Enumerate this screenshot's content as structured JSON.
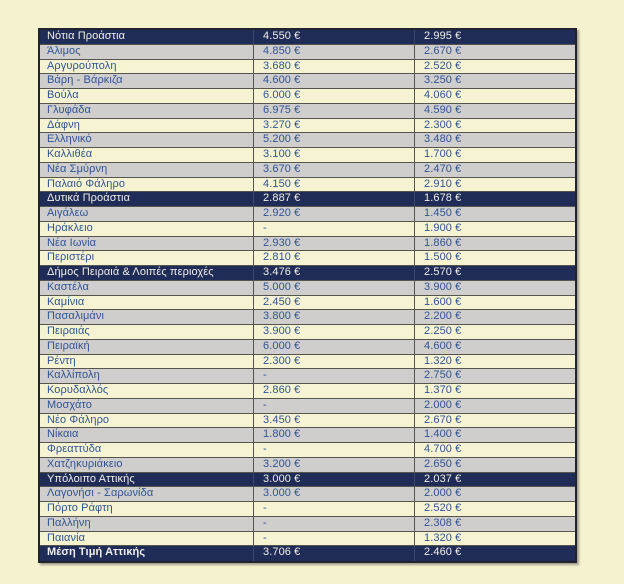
{
  "document": {
    "background_color": "#f5f2cf"
  },
  "table": {
    "description_colors": {
      "section_header_bg": "#202c58",
      "total_row_bg": "#202c58",
      "stripe_gray": "#d0cdcd",
      "stripe_cream": "#f6f3d2",
      "text_blue": "#2f5496",
      "text_on_navy": "#f0efe7",
      "inner_border": "#55544d",
      "outer_border": "#23232e"
    },
    "rows": [
      {
        "type": "section",
        "name": "Νότια Προάστια",
        "col1": "4.550 €",
        "col2": "2.995 €"
      },
      {
        "type": "data",
        "name": "Άλιμος",
        "col1": "4.850 €",
        "col2": "2.670 €"
      },
      {
        "type": "data",
        "name": "Αργυρούπολη",
        "col1": "3.680 €",
        "col2": "2.520 €"
      },
      {
        "type": "data",
        "name": "Βάρη - Βάρκιζα",
        "col1": "4.600 €",
        "col2": "3.250 €"
      },
      {
        "type": "data",
        "name": "Βούλα",
        "col1": "6.000 €",
        "col2": "4.060 €"
      },
      {
        "type": "data",
        "name": "Γλυφάδα",
        "col1": "6.975 €",
        "col2": "4.590 €"
      },
      {
        "type": "data",
        "name": "Δάφνη",
        "col1": "3.270 €",
        "col2": "2.300 €"
      },
      {
        "type": "data",
        "name": "Ελληνικό",
        "col1": "5.200 €",
        "col2": "3.480 €"
      },
      {
        "type": "data",
        "name": "Καλλιθέα",
        "col1": "3.100 €",
        "col2": "1.700 €"
      },
      {
        "type": "data",
        "name": "Νέα Σμύρνη",
        "col1": "3.670 €",
        "col2": "2.470 €"
      },
      {
        "type": "data",
        "name": "Παλαιό Φάληρο",
        "col1": "4.150 €",
        "col2": "2.910 €"
      },
      {
        "type": "section",
        "name": "Δυτικά Προάστια",
        "col1": "2.887 €",
        "col2": "1.678 €"
      },
      {
        "type": "data",
        "name": "Αιγάλεω",
        "col1": "2.920 €",
        "col2": "1.450 €"
      },
      {
        "type": "data",
        "name": "Ηράκλειο",
        "col1": "-",
        "col2": "1.900 €"
      },
      {
        "type": "data",
        "name": "Νέα Ιωνία",
        "col1": "2.930 €",
        "col2": "1.860 €"
      },
      {
        "type": "data",
        "name": "Περιστέρι",
        "col1": "2.810 €",
        "col2": "1.500 €"
      },
      {
        "type": "section",
        "name": "Δήμος Πειραιά & Λοιπές περιοχές",
        "col1": "3.476 €",
        "col2": "2.570 €"
      },
      {
        "type": "data",
        "name": "Καστέλα",
        "col1": "5.000 €",
        "col2": "3.900 €"
      },
      {
        "type": "data",
        "name": "Καμίνια",
        "col1": "2.450 €",
        "col2": "1.600 €"
      },
      {
        "type": "data",
        "name": "Πασαλιμάνι",
        "col1": "3.800 €",
        "col2": "2.200 €"
      },
      {
        "type": "data",
        "name": "Πειραιάς",
        "col1": "3.900 €",
        "col2": "2.250 €"
      },
      {
        "type": "data",
        "name": "Πειραϊκή",
        "col1": "6.000 €",
        "col2": "4.600 €"
      },
      {
        "type": "data",
        "name": "Ρέντη",
        "col1": "2.300 €",
        "col2": "1.320 €"
      },
      {
        "type": "data",
        "name": "Καλλίπολη",
        "col1": "-",
        "col2": "2.750 €"
      },
      {
        "type": "data",
        "name": "Κορυδαλλός",
        "col1": "2.860 €",
        "col2": "1.370 €"
      },
      {
        "type": "data",
        "name": "Μοσχάτο",
        "col1": "-",
        "col2": "2.000 €"
      },
      {
        "type": "data",
        "name": "Νέο Φάληρο",
        "col1": "3.450 €",
        "col2": "2.670 €"
      },
      {
        "type": "data",
        "name": "Νίκαια",
        "col1": "1.800 €",
        "col2": "1.400 €"
      },
      {
        "type": "data",
        "name": "Φρεαττύδα",
        "col1": "-",
        "col2": "4.700 €"
      },
      {
        "type": "data",
        "name": "Χατζηκυριάκειο",
        "col1": "3.200 €",
        "col2": "2.650 €"
      },
      {
        "type": "section",
        "name": "Υπόλοιπο Αττικής",
        "col1": "3.000 €",
        "col2": "2.037 €"
      },
      {
        "type": "data",
        "name": "Λαγονήσι - Σαρωνίδα",
        "col1": "3.000 €",
        "col2": "2.000 €"
      },
      {
        "type": "data",
        "name": "Πόρτο Ράφτη",
        "col1": "-",
        "col2": "2.520 €"
      },
      {
        "type": "data",
        "name": "Παλλήνη",
        "col1": "-",
        "col2": "2.308 €"
      },
      {
        "type": "data",
        "name": "Παιανία",
        "col1": "-",
        "col2": "1.320 €"
      },
      {
        "type": "total",
        "name": "Μέση Τιμή Αττικής",
        "col1": "3.706 €",
        "col2": "2.460 €"
      }
    ]
  }
}
